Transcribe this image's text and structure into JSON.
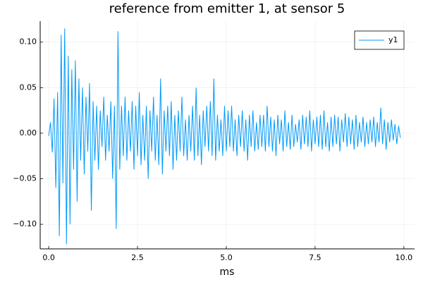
{
  "chart_data": {
    "type": "line",
    "title": "reference from emitter 1, at sensor 5",
    "x_label": "ms",
    "x": [
      0,
      0.05,
      0.1,
      0.15,
      0.2,
      0.25,
      0.3,
      0.35,
      0.4,
      0.45,
      0.5,
      0.55,
      0.6,
      0.65,
      0.7,
      0.75,
      0.8,
      0.85,
      0.9,
      0.95,
      1,
      1.05,
      1.1,
      1.15,
      1.2,
      1.25,
      1.3,
      1.35,
      1.4,
      1.45,
      1.5,
      1.55,
      1.6,
      1.65,
      1.7,
      1.75,
      1.8,
      1.85,
      1.9,
      1.95,
      2,
      2.05,
      2.1,
      2.15,
      2.2,
      2.25,
      2.3,
      2.35,
      2.4,
      2.45,
      2.5,
      2.55,
      2.6,
      2.65,
      2.7,
      2.75,
      2.8,
      2.85,
      2.9,
      2.95,
      3,
      3.05,
      3.1,
      3.15,
      3.2,
      3.25,
      3.3,
      3.35,
      3.4,
      3.45,
      3.5,
      3.55,
      3.6,
      3.65,
      3.7,
      3.75,
      3.8,
      3.85,
      3.9,
      3.95,
      4,
      4.05,
      4.1,
      4.15,
      4.2,
      4.25,
      4.3,
      4.35,
      4.4,
      4.45,
      4.5,
      4.55,
      4.6,
      4.65,
      4.7,
      4.75,
      4.8,
      4.85,
      4.9,
      4.95,
      5,
      5.05,
      5.1,
      5.15,
      5.2,
      5.25,
      5.3,
      5.35,
      5.4,
      5.45,
      5.5,
      5.55,
      5.6,
      5.65,
      5.7,
      5.75,
      5.8,
      5.85,
      5.9,
      5.95,
      6,
      6.05,
      6.1,
      6.15,
      6.2,
      6.25,
      6.3,
      6.35,
      6.4,
      6.45,
      6.5,
      6.55,
      6.6,
      6.65,
      6.7,
      6.75,
      6.8,
      6.85,
      6.9,
      6.95,
      7,
      7.05,
      7.1,
      7.15,
      7.2,
      7.25,
      7.3,
      7.35,
      7.4,
      7.45,
      7.5,
      7.55,
      7.6,
      7.65,
      7.7,
      7.75,
      7.8,
      7.85,
      7.9,
      7.95,
      8,
      8.05,
      8.1,
      8.15,
      8.2,
      8.25,
      8.3,
      8.35,
      8.4,
      8.45,
      8.5,
      8.55,
      8.6,
      8.65,
      8.7,
      8.75,
      8.8,
      8.85,
      8.9,
      8.95,
      9,
      9.05,
      9.1,
      9.15,
      9.2,
      9.25,
      9.3,
      9.35,
      9.4,
      9.45,
      9.5,
      9.55,
      9.6,
      9.65,
      9.7,
      9.75,
      9.8,
      9.85,
      9.9
    ],
    "series": [
      {
        "name": "y1",
        "color": "#009af9",
        "values": [
          -0.003,
          0.012,
          -0.021,
          0.038,
          -0.06,
          0.045,
          -0.113,
          0.108,
          -0.055,
          0.115,
          -0.122,
          0.085,
          -0.1,
          0.07,
          -0.04,
          0.08,
          -0.075,
          0.06,
          -0.03,
          0.05,
          -0.045,
          0.04,
          -0.02,
          0.055,
          -0.085,
          0.035,
          -0.03,
          0.03,
          -0.04,
          0.025,
          -0.015,
          0.04,
          -0.03,
          0.02,
          -0.02,
          0.035,
          -0.05,
          0.03,
          -0.105,
          0.112,
          -0.04,
          0.03,
          -0.025,
          0.04,
          -0.03,
          0.025,
          -0.02,
          0.035,
          -0.04,
          0.03,
          -0.025,
          0.045,
          -0.035,
          0.02,
          -0.03,
          0.03,
          -0.05,
          0.025,
          -0.02,
          0.04,
          -0.03,
          0.02,
          -0.035,
          0.06,
          -0.045,
          0.025,
          -0.02,
          0.03,
          -0.025,
          0.035,
          -0.04,
          0.02,
          -0.03,
          0.025,
          -0.02,
          0.04,
          -0.025,
          0.015,
          -0.03,
          0.02,
          -0.02,
          0.03,
          -0.03,
          0.05,
          -0.025,
          0.02,
          -0.035,
          0.025,
          -0.015,
          0.03,
          -0.02,
          0.035,
          -0.025,
          0.06,
          -0.03,
          0.02,
          -0.02,
          0.015,
          -0.025,
          0.03,
          -0.02,
          0.025,
          -0.015,
          0.03,
          -0.02,
          0.015,
          -0.025,
          0.02,
          -0.015,
          0.025,
          -0.02,
          0.015,
          -0.03,
          0.02,
          -0.015,
          0.025,
          -0.02,
          0.012,
          -0.018,
          0.02,
          -0.015,
          0.02,
          -0.02,
          0.03,
          -0.015,
          0.018,
          -0.02,
          0.015,
          -0.025,
          0.02,
          -0.012,
          0.015,
          -0.02,
          0.025,
          -0.015,
          0.012,
          -0.018,
          0.02,
          -0.015,
          0.01,
          -0.01,
          0.015,
          -0.018,
          0.02,
          -0.012,
          0.018,
          -0.015,
          0.025,
          -0.02,
          0.015,
          -0.012,
          0.018,
          -0.015,
          0.02,
          -0.018,
          0.025,
          -0.015,
          0.012,
          -0.02,
          0.018,
          -0.015,
          0.02,
          -0.012,
          0.018,
          -0.02,
          0.015,
          -0.01,
          0.022,
          -0.015,
          0.018,
          -0.012,
          0.015,
          -0.018,
          0.02,
          -0.015,
          0.012,
          -0.01,
          0.018,
          -0.015,
          0.012,
          -0.012,
          0.015,
          -0.01,
          0.018,
          -0.015,
          0.012,
          -0.01,
          0.028,
          -0.012,
          0.015,
          -0.018,
          0.012,
          -0.01,
          0.015,
          -0.008,
          0.01,
          -0.012,
          0.008,
          -0.005
        ]
      }
    ],
    "xlim": [
      -0.24,
      10.3
    ],
    "ylim": [
      -0.127,
      0.123
    ],
    "xticks": [
      {
        "value": 0,
        "label": "0.0"
      },
      {
        "value": 2.5,
        "label": "2.5"
      },
      {
        "value": 5,
        "label": "5.0"
      },
      {
        "value": 7.5,
        "label": "7.5"
      },
      {
        "value": 10,
        "label": "10.0"
      }
    ],
    "yticks": [
      {
        "value": -0.1,
        "label": "−0.10"
      },
      {
        "value": -0.05,
        "label": "−0.05"
      },
      {
        "value": 0,
        "label": "0.00"
      },
      {
        "value": 0.05,
        "label": "0.05"
      },
      {
        "value": 0.1,
        "label": "0.10"
      }
    ],
    "grid": true,
    "legend": "topright"
  }
}
